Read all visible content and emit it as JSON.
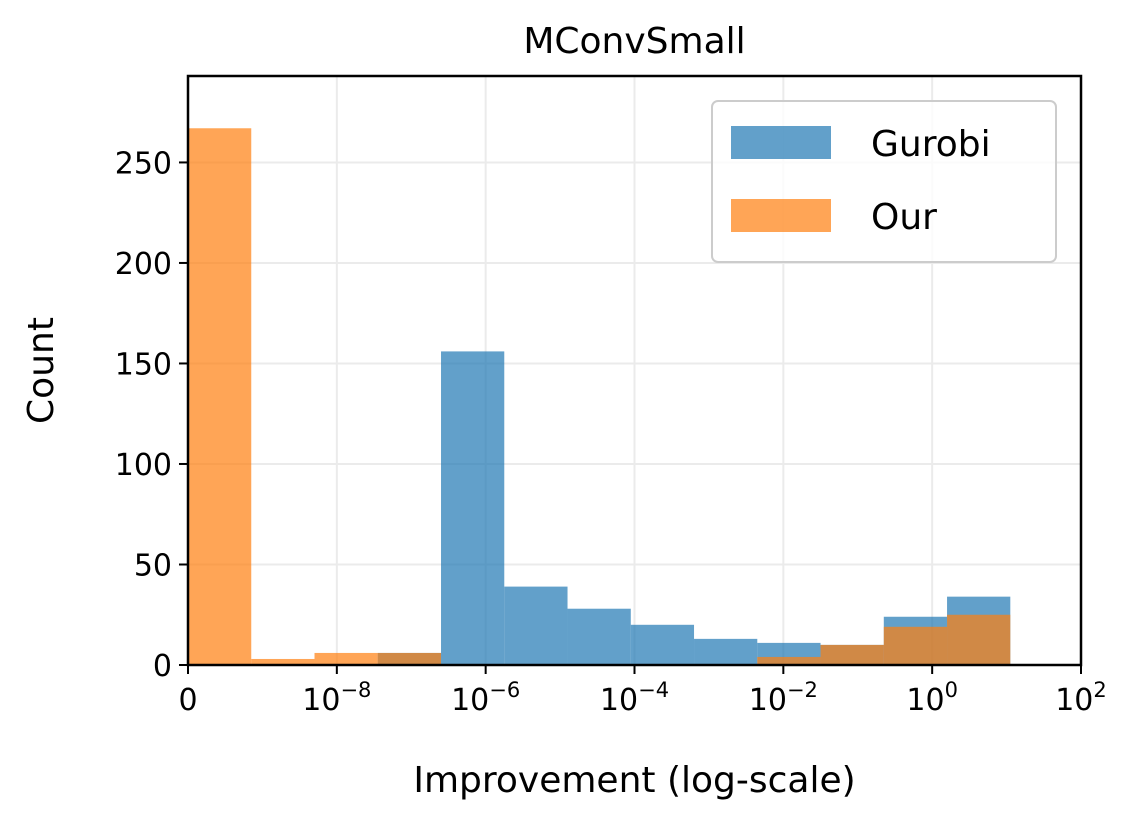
{
  "chart_data": {
    "type": "bar",
    "title": "MConvSmall",
    "xlabel": "Improvement (log-scale)",
    "ylabel": "Count",
    "x_scale": "symlog",
    "xlim_decades": [
      -10,
      2
    ],
    "ylim": [
      0,
      293
    ],
    "grid": true,
    "legend_position": "upper right",
    "x_ticks": [
      {
        "base": "0",
        "exp": ""
      },
      {
        "base": "10",
        "exp": "−8"
      },
      {
        "base": "10",
        "exp": "−6"
      },
      {
        "base": "10",
        "exp": "−4"
      },
      {
        "base": "10",
        "exp": "−2"
      },
      {
        "base": "10",
        "exp": "0"
      },
      {
        "base": "10",
        "exp": "2"
      }
    ],
    "y_ticks": [
      "0",
      "50",
      "100",
      "150",
      "200",
      "250"
    ],
    "bin_edges": [
      -10,
      -9.15,
      -8.3,
      -7.45,
      -6.6,
      -5.75,
      -4.9,
      -4.05,
      -3.2,
      -2.35,
      -1.5,
      -0.65,
      0.2,
      1.05
    ],
    "series": [
      {
        "name": "Gurobi",
        "color": "#1f77b4",
        "values": [
          0,
          0,
          0,
          6,
          156,
          39,
          28,
          20,
          13,
          11,
          10,
          24,
          34
        ]
      },
      {
        "name": "Our",
        "color": "#ff7f0e",
        "values": [
          267,
          3,
          6,
          6,
          0,
          0,
          0,
          0,
          0,
          4,
          10,
          19,
          25
        ]
      }
    ]
  }
}
